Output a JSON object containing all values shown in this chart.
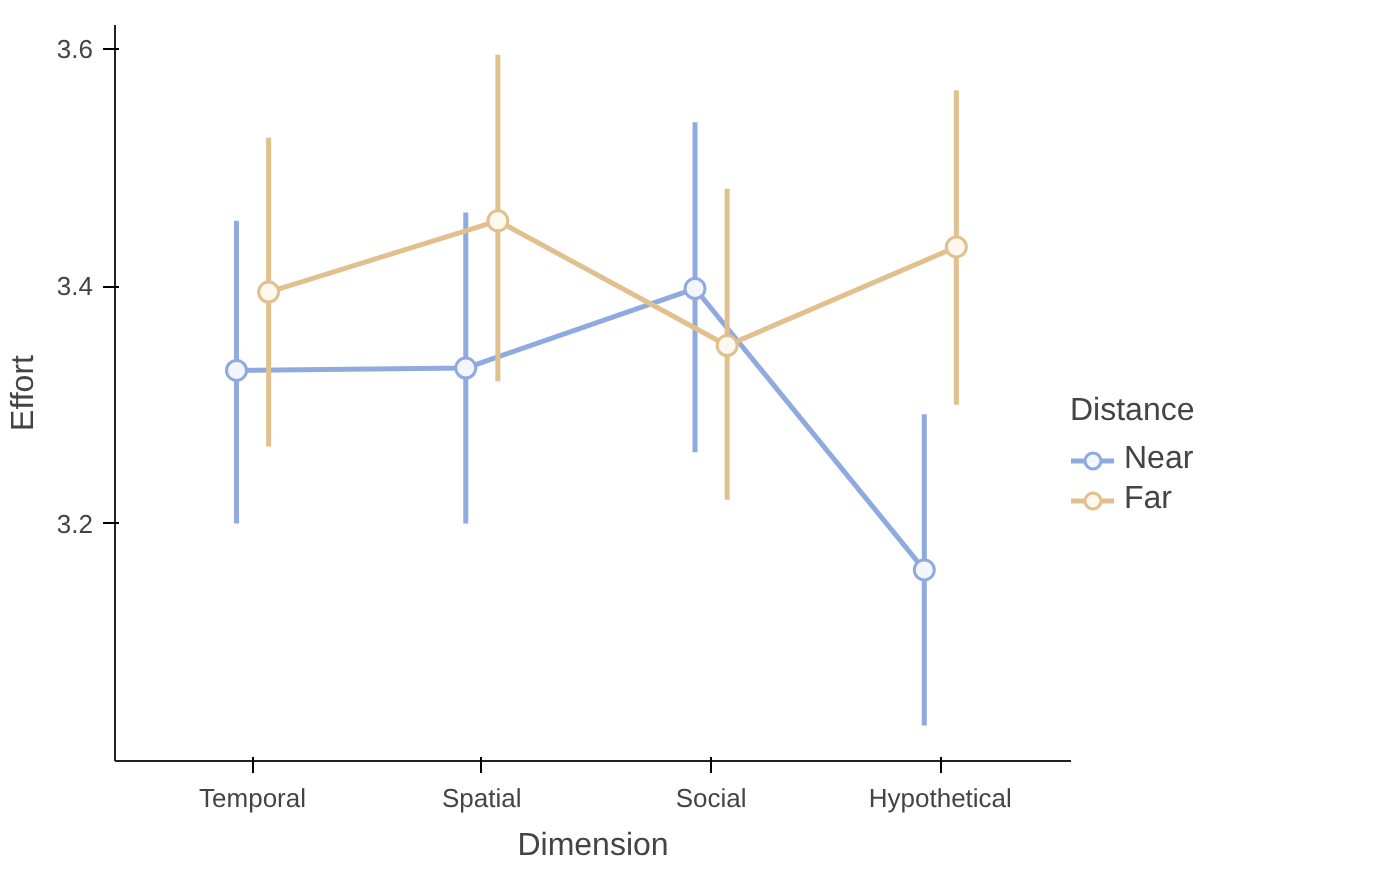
{
  "chart_data": {
    "type": "line",
    "xlabel": "Dimension",
    "ylabel": "Effort",
    "legend_title": "Distance",
    "categories": [
      "Temporal",
      "Spatial",
      "Social",
      "Hypothetical"
    ],
    "series": [
      {
        "name": "Near",
        "color": "#8eaadf",
        "values": [
          3.329,
          3.331,
          3.398,
          3.161
        ],
        "errors": [
          [
            3.2,
            3.455
          ],
          [
            3.2,
            3.462
          ],
          [
            3.26,
            3.538
          ],
          [
            3.03,
            3.292
          ]
        ]
      },
      {
        "name": "Far",
        "color": "#e2c08d",
        "values": [
          3.395,
          3.455,
          3.35,
          3.433
        ],
        "errors": [
          [
            3.265,
            3.525
          ],
          [
            3.32,
            3.595
          ],
          [
            3.22,
            3.482
          ],
          [
            3.3,
            3.565
          ]
        ]
      }
    ],
    "ylim": [
      3.0,
      3.62
    ],
    "yticks": [
      3.2,
      3.4,
      3.6
    ],
    "grid": false,
    "legend": "right",
    "marker": "circle",
    "line_style": "solid"
  }
}
